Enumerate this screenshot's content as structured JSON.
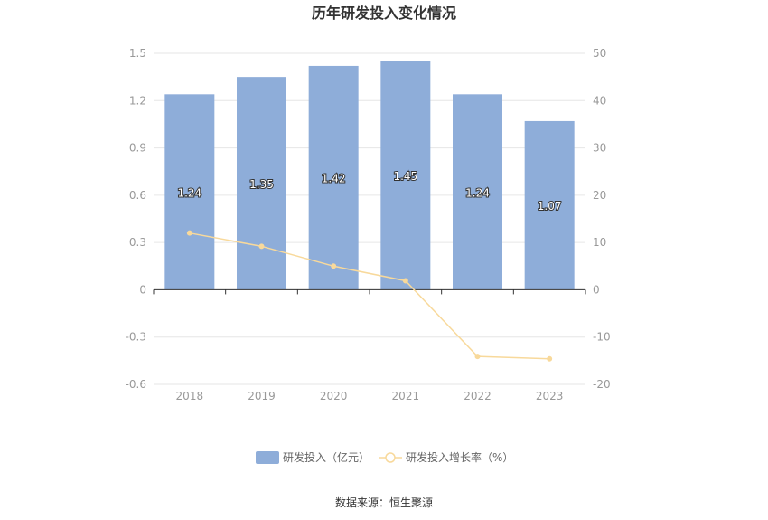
{
  "chart_data": {
    "type": "bar",
    "title": "历年研发投入变化情况",
    "categories": [
      "2018",
      "2019",
      "2020",
      "2021",
      "2022",
      "2023"
    ],
    "series": [
      {
        "name": "研发投入（亿元）",
        "type": "bar",
        "axis": "left",
        "values": [
          1.24,
          1.35,
          1.42,
          1.45,
          1.24,
          1.07
        ],
        "labels": [
          "1.24",
          "1.35",
          "1.42",
          "1.45",
          "1.24",
          "1.07"
        ],
        "color": "#8eadd9"
      },
      {
        "name": "研发投入增长率（%）",
        "type": "line",
        "axis": "right",
        "values": [
          12.0,
          9.2,
          5.0,
          1.9,
          -14.1,
          -14.6
        ],
        "color": "#f8d99b"
      }
    ],
    "left_axis": {
      "ylim": [
        -0.6,
        1.5
      ],
      "ticks": [
        "1.5",
        "1.2",
        "0.9",
        "0.6",
        "0.3",
        "0",
        "-0.3",
        "-0.6"
      ],
      "tick_values": [
        1.5,
        1.2,
        0.9,
        0.6,
        0.3,
        0,
        -0.3,
        -0.6
      ]
    },
    "right_axis": {
      "ylim": [
        -20,
        50
      ],
      "ticks": [
        "50",
        "40",
        "30",
        "20",
        "10",
        "0",
        "-10",
        "-20"
      ],
      "tick_values": [
        50,
        40,
        30,
        20,
        10,
        0,
        -10,
        -20
      ]
    },
    "grid": true,
    "legend_position": "bottom-center",
    "source": "数据来源：恒生聚源"
  },
  "colors": {
    "bar": "#8eadd9",
    "line": "#f8d99b",
    "grid": "#e6e6e6",
    "axis": "#333333"
  }
}
